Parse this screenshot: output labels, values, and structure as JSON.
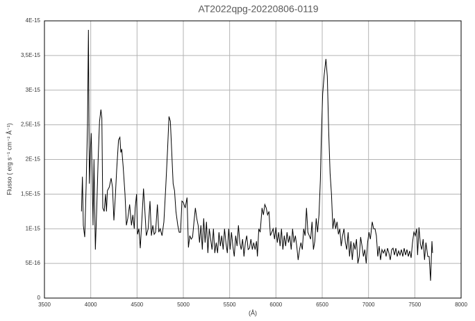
{
  "chart_data": {
    "type": "line",
    "title": "AT2022qpg-20220806-0119",
    "x_label": "(Å)",
    "y_label": "Flusso ( erg s⁻¹ cm⁻² Å⁻¹)",
    "color": "#000000",
    "grid": true,
    "xlim": [
      3500,
      8000
    ],
    "xticks": [
      3500,
      4000,
      4500,
      5000,
      5500,
      6000,
      6500,
      7000,
      7500,
      8000
    ],
    "ylim": [
      0,
      4e-15
    ],
    "yticks": [
      0,
      {
        "value": 5e-16,
        "label": "5E-16"
      },
      {
        "value": 1e-15,
        "label": "1E-15"
      },
      {
        "value": 1.5e-15,
        "label": "1,5E-15"
      },
      {
        "value": 2e-15,
        "label": "2E-15"
      },
      {
        "value": 2.5e-15,
        "label": "2,5E-15"
      },
      {
        "value": 3e-15,
        "label": "3E-15"
      },
      {
        "value": 3.5e-15,
        "label": "3,5E-15"
      },
      {
        "value": 4e-15,
        "label": "4E-15"
      }
    ],
    "x": [
      3900,
      3910,
      3920,
      3935,
      3950,
      3965,
      3975,
      3985,
      3995,
      4005,
      4015,
      4025,
      4035,
      4050,
      4065,
      4080,
      4095,
      4110,
      4120,
      4130,
      4145,
      4160,
      4170,
      4180,
      4200,
      4220,
      4235,
      4250,
      4265,
      4280,
      4300,
      4315,
      4325,
      4335,
      4350,
      4370,
      4385,
      4400,
      4420,
      4440,
      4455,
      4470,
      4480,
      4495,
      4505,
      4520,
      4535,
      4555,
      4570,
      4585,
      4600,
      4620,
      4640,
      4655,
      4670,
      4685,
      4700,
      4720,
      4735,
      4750,
      4770,
      4790,
      4810,
      4830,
      4845,
      4860,
      4875,
      4890,
      4905,
      4920,
      4940,
      4955,
      4970,
      4985,
      5000,
      5020,
      5040,
      5055,
      5070,
      5085,
      5100,
      5115,
      5130,
      5145,
      5160,
      5175,
      5190,
      5205,
      5220,
      5235,
      5250,
      5265,
      5280,
      5295,
      5310,
      5325,
      5340,
      5355,
      5370,
      5385,
      5400,
      5415,
      5430,
      5445,
      5460,
      5475,
      5490,
      5505,
      5520,
      5535,
      5550,
      5565,
      5580,
      5595,
      5610,
      5625,
      5640,
      5655,
      5670,
      5685,
      5700,
      5715,
      5730,
      5745,
      5760,
      5775,
      5790,
      5800,
      5815,
      5830,
      5850,
      5865,
      5880,
      5895,
      5910,
      5925,
      5940,
      5955,
      5970,
      5985,
      6000,
      6015,
      6030,
      6045,
      6060,
      6075,
      6090,
      6105,
      6120,
      6135,
      6150,
      6165,
      6180,
      6195,
      6210,
      6225,
      6240,
      6255,
      6270,
      6285,
      6300,
      6315,
      6330,
      6345,
      6360,
      6375,
      6390,
      6405,
      6420,
      6435,
      6450,
      6465,
      6480,
      6490,
      6505,
      6520,
      6540,
      6555,
      6570,
      6585,
      6600,
      6615,
      6630,
      6645,
      6660,
      6675,
      6690,
      6705,
      6720,
      6735,
      6750,
      6765,
      6780,
      6795,
      6810,
      6825,
      6840,
      6855,
      6870,
      6885,
      6900,
      6915,
      6930,
      6945,
      6960,
      6975,
      6990,
      7005,
      7020,
      7040,
      7055,
      7070,
      7085,
      7100,
      7115,
      7130,
      7145,
      7160,
      7175,
      7190,
      7205,
      7220,
      7235,
      7250,
      7265,
      7280,
      7295,
      7310,
      7325,
      7340,
      7355,
      7370,
      7385,
      7400,
      7415,
      7430,
      7445,
      7460,
      7475,
      7490,
      7505,
      7520,
      7530,
      7545,
      7560,
      7575,
      7590,
      7605,
      7620,
      7640,
      7655,
      7670,
      7685,
      7692
    ],
    "values": [
      1.25e-15,
      1.75e-15,
      1.05e-15,
      8.8e-16,
      1.6e-15,
      2.5e-15,
      3.87e-15,
      1.65e-15,
      2.1e-15,
      2.38e-15,
      1.8e-15,
      1.05e-15,
      2e-15,
      7e-16,
      1.3e-15,
      2e-15,
      2.55e-15,
      2.72e-15,
      2.6e-15,
      1.3e-15,
      1.25e-15,
      1.5e-15,
      1.25e-15,
      1.55e-15,
      1.6e-15,
      1.73e-15,
      1.6e-15,
      1.12e-15,
      1.45e-15,
      1.85e-15,
      2.28e-15,
      2.32e-15,
      2.1e-15,
      2.15e-15,
      1.9e-15,
      1.5e-15,
      1.05e-15,
      1.15e-15,
      1.35e-15,
      1.05e-15,
      1.2e-15,
      1e-15,
      1.3e-15,
      1.5e-15,
      9.2e-16,
      1e-15,
      7.2e-16,
      1.2e-15,
      1.58e-15,
      1.25e-15,
      9e-16,
      1e-15,
      1.4e-15,
      9e-16,
      1.05e-15,
      9.2e-16,
      9.5e-16,
      1.35e-15,
      9.5e-16,
      1e-15,
      9e-16,
      1.1e-15,
      1.6e-15,
      2.15e-15,
      2.62e-15,
      2.55e-15,
      2.1e-15,
      1.65e-15,
      1.55e-15,
      1.25e-15,
      1.05e-15,
      9.5e-16,
      9.5e-16,
      1.4e-15,
      1.38e-15,
      1.3e-15,
      1.45e-15,
      7.3e-16,
      9e-16,
      8.5e-16,
      8.8e-16,
      1.1e-15,
      1.3e-15,
      1.15e-15,
      1.05e-15,
      8e-16,
      1.05e-15,
      7e-16,
      1.15e-15,
      8e-16,
      1.1e-15,
      6.5e-16,
      1e-15,
      8.5e-16,
      7e-16,
      1e-15,
      6.5e-16,
      8e-16,
      6.5e-16,
      9.5e-16,
      7.5e-16,
      9e-16,
      7e-16,
      1e-15,
      8e-16,
      6.5e-16,
      1e-15,
      7e-16,
      9.5e-16,
      7.5e-16,
      6e-16,
      9e-16,
      7.5e-16,
      1.05e-15,
      8e-16,
      7e-16,
      8.5e-16,
      6e-16,
      8e-16,
      9e-16,
      7e-16,
      7.2e-16,
      8.5e-16,
      7e-16,
      8e-16,
      7e-16,
      8.2e-16,
      6e-16,
      1e-15,
      9.5e-16,
      1.3e-15,
      1.2e-15,
      1.35e-15,
      1.3e-15,
      1.2e-15,
      1.25e-15,
      9e-16,
      9.5e-16,
      1e-15,
      8.5e-16,
      1.02e-15,
      8e-16,
      9.5e-16,
      7.5e-16,
      1e-15,
      7e-16,
      9e-16,
      7.5e-16,
      9.5e-16,
      8e-16,
      9e-16,
      7e-16,
      1e-15,
      8e-16,
      9e-16,
      7.5e-16,
      5.5e-16,
      7e-16,
      8e-16,
      7e-16,
      1e-15,
      9e-16,
      1.3e-15,
      9.5e-16,
      9e-16,
      8.5e-16,
      1.1e-15,
      7e-16,
      8.2e-16,
      1.15e-15,
      9.5e-16,
      1.2e-15,
      1.7e-15,
      2.3e-15,
      2.95e-15,
      3.2e-15,
      3.45e-15,
      3.2e-15,
      2.4e-15,
      1.8e-15,
      1.5e-15,
      1e-15,
      1.15e-15,
      1e-15,
      1.1e-15,
      9.2e-16,
      1e-15,
      7.5e-16,
      9e-16,
      1e-15,
      8e-16,
      7e-16,
      9.5e-16,
      6e-16,
      8.2e-16,
      5.5e-16,
      8e-16,
      7e-16,
      8.5e-16,
      5e-16,
      6e-16,
      8.8e-16,
      7.5e-16,
      6e-16,
      7e-16,
      5e-16,
      8e-16,
      9.5e-16,
      8.5e-16,
      1.1e-15,
      1e-15,
      1e-15,
      9e-16,
      6e-16,
      7.5e-16,
      5.5e-16,
      7e-16,
      6.5e-16,
      7e-16,
      6e-16,
      7.2e-16,
      6.5e-16,
      5.5e-16,
      7e-16,
      7.2e-16,
      6.2e-16,
      7.2e-16,
      6e-16,
      6.8e-16,
      6.2e-16,
      7e-16,
      6e-16,
      7.2e-16,
      6.2e-16,
      7e-16,
      6e-16,
      6.8e-16,
      5.8e-16,
      8e-16,
      9.5e-16,
      9e-16,
      1e-15,
      6.2e-16,
      1.02e-15,
      7.8e-16,
      7e-16,
      8.5e-16,
      5.5e-16,
      8e-16,
      6e-16,
      6e-16,
      2.5e-16,
      8.2e-16,
      6.5e-16
    ]
  }
}
